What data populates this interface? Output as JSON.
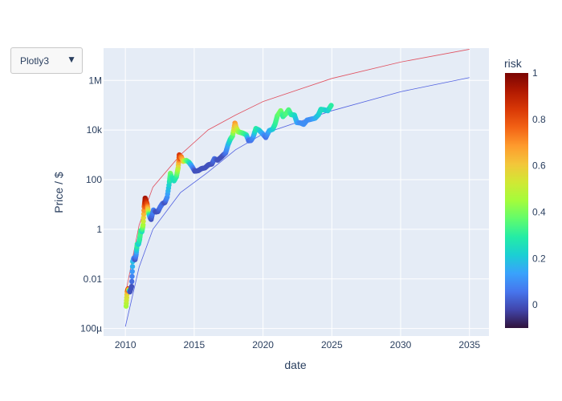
{
  "dropdown": {
    "selected": "Plotly3",
    "arrow_icon": "triangle-down-icon"
  },
  "chart_data": {
    "type": "scatter",
    "title": "",
    "xlabel": "date",
    "ylabel": "Price / $",
    "x_axis": {
      "type": "date",
      "range": [
        "2008-06-01",
        "2036-06-01"
      ],
      "ticks": [
        "2010",
        "2015",
        "2020",
        "2025",
        "2030",
        "2035"
      ]
    },
    "y_axis": {
      "type": "log",
      "range": [
        5e-05,
        20000000
      ],
      "ticks": [
        {
          "value": 0.0001,
          "label": "100µ"
        },
        {
          "value": 0.01,
          "label": "0.01"
        },
        {
          "value": 1,
          "label": "1"
        },
        {
          "value": 100,
          "label": "100"
        },
        {
          "value": 10000,
          "label": "10k"
        },
        {
          "value": 1000000,
          "label": "1M"
        }
      ]
    },
    "grid": true,
    "plot_bgcolor": "#e5ecf6",
    "colorbar": {
      "title": "risk",
      "range": [
        -0.1,
        1
      ],
      "ticks": [
        "0",
        "0.2",
        "0.4",
        "0.6",
        "0.8",
        "1"
      ],
      "colorscale": [
        "#30123b",
        "#4145ab",
        "#4675ed",
        "#39a2fc",
        "#1bcfd4",
        "#24eca6",
        "#61fc6c",
        "#a4fc3b",
        "#d1e834",
        "#f3c63a",
        "#fe9b2d",
        "#f36315",
        "#d93806",
        "#b11901",
        "#7a0402"
      ]
    },
    "series": [
      {
        "mode": "markers",
        "x_field": "date",
        "y_field": "price",
        "color_field": "risk",
        "points": [
          [
            "2010-01-20",
            0.0008,
            0.45
          ],
          [
            "2010-02-15",
            0.003,
            0.6
          ],
          [
            "2010-03-15",
            0.004,
            0.85
          ],
          [
            "2010-05-01",
            0.003,
            0.0
          ],
          [
            "2010-06-15",
            0.005,
            0.0
          ],
          [
            "2010-07-15",
            0.05,
            0.2
          ],
          [
            "2010-08-15",
            0.07,
            0.1
          ],
          [
            "2010-09-15",
            0.06,
            0.0
          ],
          [
            "2010-10-15",
            0.1,
            0.1
          ],
          [
            "2010-11-10",
            0.25,
            0.35
          ],
          [
            "2010-12-15",
            0.25,
            0.2
          ],
          [
            "2011-01-15",
            0.4,
            0.3
          ],
          [
            "2011-02-15",
            0.9,
            0.35
          ],
          [
            "2011-03-15",
            0.8,
            0.25
          ],
          [
            "2011-04-15",
            1.5,
            0.45
          ],
          [
            "2011-05-15",
            8,
            0.75
          ],
          [
            "2011-06-10",
            18,
            0.95
          ],
          [
            "2011-07-05",
            14,
            0.9
          ],
          [
            "2011-08-01",
            10,
            0.8
          ],
          [
            "2011-09-01",
            5,
            0.5
          ],
          [
            "2011-10-15",
            3,
            0.1
          ],
          [
            "2011-11-15",
            2.5,
            0.0
          ],
          [
            "2012-01-15",
            6,
            0.1
          ],
          [
            "2012-03-15",
            5,
            0.0
          ],
          [
            "2012-05-15",
            5.2,
            0.0
          ],
          [
            "2012-07-15",
            8,
            0.05
          ],
          [
            "2012-09-15",
            11,
            0.05
          ],
          [
            "2012-11-15",
            12,
            0.0
          ],
          [
            "2013-01-15",
            20,
            0.1
          ],
          [
            "2013-03-15",
            80,
            0.25
          ],
          [
            "2013-04-10",
            180,
            0.4
          ],
          [
            "2013-05-15",
            120,
            0.3
          ],
          [
            "2013-07-15",
            90,
            0.25
          ],
          [
            "2013-09-15",
            130,
            0.3
          ],
          [
            "2013-11-01",
            300,
            0.5
          ],
          [
            "2013-12-01",
            1000,
            0.85
          ],
          [
            "2013-12-20",
            700,
            0.8
          ],
          [
            "2014-01-20",
            850,
            0.75
          ],
          [
            "2014-03-15",
            550,
            0.6
          ],
          [
            "2014-06-01",
            600,
            0.4
          ],
          [
            "2014-08-15",
            500,
            0.3
          ],
          [
            "2014-10-15",
            380,
            0.15
          ],
          [
            "2015-01-15",
            220,
            0.0
          ],
          [
            "2015-04-15",
            230,
            0.0
          ],
          [
            "2015-07-15",
            280,
            0.0
          ],
          [
            "2015-10-15",
            300,
            0.0
          ],
          [
            "2016-01-15",
            400,
            0.0
          ],
          [
            "2016-04-15",
            430,
            0.0
          ],
          [
            "2016-06-20",
            700,
            0.05
          ],
          [
            "2016-09-15",
            610,
            0.0
          ],
          [
            "2016-12-15",
            800,
            0.0
          ],
          [
            "2017-02-15",
            1000,
            0.0
          ],
          [
            "2017-04-15",
            1200,
            0.05
          ],
          [
            "2017-06-15",
            2500,
            0.15
          ],
          [
            "2017-08-15",
            4200,
            0.25
          ],
          [
            "2017-10-15",
            5800,
            0.35
          ],
          [
            "2017-12-17",
            19000,
            0.7
          ],
          [
            "2018-01-15",
            13000,
            0.6
          ],
          [
            "2018-03-15",
            8500,
            0.45
          ],
          [
            "2018-05-15",
            8000,
            0.4
          ],
          [
            "2018-07-15",
            7500,
            0.35
          ],
          [
            "2018-10-15",
            6400,
            0.3
          ],
          [
            "2018-12-15",
            3700,
            0.05
          ],
          [
            "2019-02-15",
            3800,
            0.05
          ],
          [
            "2019-04-15",
            5200,
            0.1
          ],
          [
            "2019-06-26",
            11500,
            0.3
          ],
          [
            "2019-09-15",
            10000,
            0.25
          ],
          [
            "2019-12-15",
            7200,
            0.15
          ],
          [
            "2020-03-15",
            5000,
            0.05
          ],
          [
            "2020-06-15",
            9500,
            0.15
          ],
          [
            "2020-09-15",
            10800,
            0.2
          ],
          [
            "2020-11-15",
            17000,
            0.3
          ],
          [
            "2021-01-15",
            37000,
            0.35
          ],
          [
            "2021-04-15",
            60000,
            0.4
          ],
          [
            "2021-06-15",
            35000,
            0.3
          ],
          [
            "2021-09-15",
            48000,
            0.35
          ],
          [
            "2021-11-10",
            65000,
            0.35
          ],
          [
            "2022-01-15",
            42000,
            0.3
          ],
          [
            "2022-04-15",
            40000,
            0.25
          ],
          [
            "2022-06-20",
            20000,
            0.15
          ],
          [
            "2022-09-15",
            19500,
            0.1
          ],
          [
            "2022-12-15",
            17000,
            0.1
          ],
          [
            "2023-03-15",
            25000,
            0.1
          ],
          [
            "2023-06-15",
            27000,
            0.1
          ],
          [
            "2023-10-15",
            30000,
            0.15
          ],
          [
            "2024-01-15",
            42000,
            0.2
          ],
          [
            "2024-03-15",
            68000,
            0.25
          ],
          [
            "2024-06-15",
            65000,
            0.25
          ],
          [
            "2024-09-15",
            60000,
            0.2
          ],
          [
            "2024-12-15",
            98000,
            0.3
          ]
        ]
      },
      {
        "mode": "lines",
        "color": "#e0505f",
        "points": [
          [
            "2010-02-01",
            0.004
          ],
          [
            "2011-01-01",
            1.5
          ],
          [
            "2012-01-01",
            50
          ],
          [
            "2014-01-01",
            1000
          ],
          [
            "2016-01-01",
            10000
          ],
          [
            "2018-01-01",
            40000
          ],
          [
            "2020-01-01",
            140000
          ],
          [
            "2025-01-01",
            1200000
          ],
          [
            "2030-01-01",
            5500000
          ],
          [
            "2035-01-01",
            18000000
          ]
        ]
      },
      {
        "mode": "lines",
        "color": "#5060e0",
        "points": [
          [
            "2010-01-01",
            0.00012
          ],
          [
            "2011-01-01",
            0.03
          ],
          [
            "2012-01-01",
            1
          ],
          [
            "2014-01-01",
            30
          ],
          [
            "2016-01-01",
            200
          ],
          [
            "2018-01-01",
            1600
          ],
          [
            "2020-01-01",
            7000
          ],
          [
            "2025-01-01",
            60000
          ],
          [
            "2030-01-01",
            350000
          ],
          [
            "2035-01-01",
            1300000
          ]
        ]
      }
    ]
  }
}
